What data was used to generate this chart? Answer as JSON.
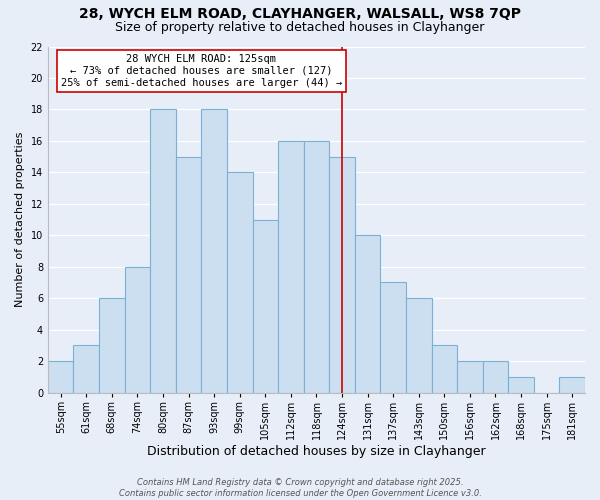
{
  "title1": "28, WYCH ELM ROAD, CLAYHANGER, WALSALL, WS8 7QP",
  "title2": "Size of property relative to detached houses in Clayhanger",
  "xlabel": "Distribution of detached houses by size in Clayhanger",
  "ylabel": "Number of detached properties",
  "bin_labels": [
    "55sqm",
    "61sqm",
    "68sqm",
    "74sqm",
    "80sqm",
    "87sqm",
    "93sqm",
    "99sqm",
    "105sqm",
    "112sqm",
    "118sqm",
    "124sqm",
    "131sqm",
    "137sqm",
    "143sqm",
    "150sqm",
    "156sqm",
    "162sqm",
    "168sqm",
    "175sqm",
    "181sqm"
  ],
  "bar_values": [
    2,
    3,
    6,
    8,
    18,
    15,
    18,
    14,
    11,
    16,
    16,
    15,
    10,
    7,
    6,
    3,
    2,
    2,
    1,
    0,
    1
  ],
  "bar_color": "#ccdff0",
  "bar_edgecolor": "#7ab0d4",
  "background_color": "#e8eef8",
  "grid_color": "#ffffff",
  "vline_x_index": 11,
  "vline_color": "#cc0000",
  "annotation_line1": "28 WYCH ELM ROAD: 125sqm",
  "annotation_line2": "← 73% of detached houses are smaller (127)",
  "annotation_line3": "25% of semi-detached houses are larger (44) →",
  "ylim": [
    0,
    22
  ],
  "yticks": [
    0,
    2,
    4,
    6,
    8,
    10,
    12,
    14,
    16,
    18,
    20,
    22
  ],
  "footer1": "Contains HM Land Registry data © Crown copyright and database right 2025.",
  "footer2": "Contains public sector information licensed under the Open Government Licence v3.0.",
  "title1_fontsize": 10,
  "title2_fontsize": 9,
  "xlabel_fontsize": 9,
  "ylabel_fontsize": 8,
  "tick_fontsize": 7,
  "annotation_fontsize": 7.5,
  "footer_fontsize": 6
}
